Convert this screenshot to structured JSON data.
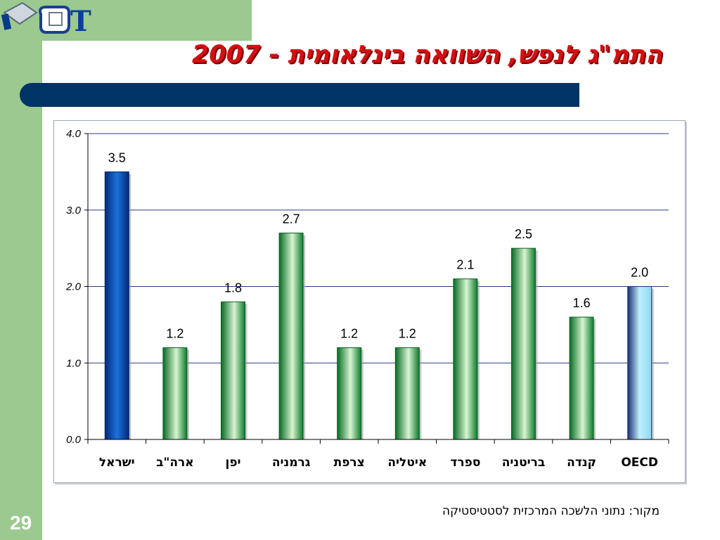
{
  "slide": {
    "logo_text": "JCT",
    "title": "התמ\"ג לנפש, השוואה בינלאומית - 2007",
    "source": "מקור: נתוני הלשכה המרכזית לסטטיסטיקה",
    "page_number": "29"
  },
  "colors": {
    "accent_green": "#9bc98f",
    "title_red": "#d40f12",
    "title_bar": "#003366",
    "bar_israel": "#0b5bbf",
    "bar_green": "#0e8a2e",
    "bar_oecd": "#a9e3f5"
  },
  "chart_data": {
    "type": "bar",
    "categories": [
      "ישראל",
      "ארה\"ב",
      "יפן",
      "גרמניה",
      "צרפת",
      "איטליה",
      "ספרד",
      "בריטניה",
      "קנדה",
      "OECD"
    ],
    "values": [
      3.5,
      1.2,
      1.8,
      2.7,
      1.2,
      1.2,
      2.1,
      2.5,
      1.6,
      2.0
    ],
    "value_labels": [
      "3.5",
      "1.2",
      "1.8",
      "2.7",
      "1.2",
      "1.2",
      "2.1",
      "2.5",
      "1.6",
      "2.0"
    ],
    "yticks": [
      "0.0",
      "1.0",
      "2.0",
      "3.0",
      "4.0"
    ],
    "ylim": [
      0,
      4
    ],
    "grid": true,
    "title": "",
    "xlabel": "",
    "ylabel": ""
  }
}
